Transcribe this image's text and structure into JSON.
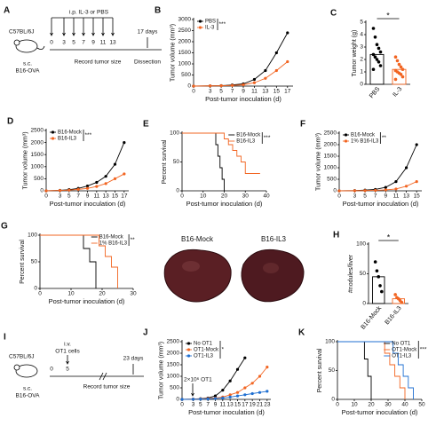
{
  "chart_data": [
    {
      "type": "line",
      "panel": "B",
      "xlabel": "Post-tumor inoculation (d)",
      "ylabel": "Tumor volume (mm³)",
      "x": [
        0,
        3,
        5,
        7,
        9,
        11,
        13,
        15,
        17
      ],
      "xlim": [
        0,
        18
      ],
      "xticks": [
        0,
        3,
        5,
        7,
        9,
        11,
        13,
        15,
        17
      ],
      "ylim": [
        0,
        3000
      ],
      "yticks": [
        0,
        500,
        1000,
        1500,
        2000,
        2500,
        3000
      ],
      "legend": "upper left",
      "significance": "***",
      "series": [
        {
          "name": "PBS",
          "color": "#000000",
          "values": [
            0,
            10,
            20,
            50,
            100,
            300,
            700,
            1500,
            2400
          ]
        },
        {
          "name": "IL-3",
          "color": "#f26522",
          "values": [
            0,
            10,
            15,
            30,
            60,
            150,
            350,
            700,
            1100
          ]
        }
      ]
    },
    {
      "type": "bar",
      "panel": "C",
      "ylabel": "Tumor weight (g)",
      "categories": [
        "PBS",
        "IL-3"
      ],
      "values": [
        2.4,
        1.2
      ],
      "colors": [
        "#000000",
        "#f26522"
      ],
      "ylim": [
        0,
        5
      ],
      "yticks": [
        0,
        1,
        2,
        3,
        4,
        5
      ],
      "significance": "*",
      "points": [
        [
          4.5,
          3.8,
          3.2,
          2.9,
          2.6,
          2.4,
          2.2,
          2.0,
          1.8,
          1.5,
          1.2
        ],
        [
          2.2,
          1.9,
          1.6,
          1.4,
          1.2,
          1.1,
          1.0,
          0.9,
          0.8,
          0.6,
          0.4
        ]
      ]
    },
    {
      "type": "line",
      "panel": "D",
      "xlabel": "Post-tumor inoculation (d)",
      "ylabel": "Tumor volume (mm³)",
      "x": [
        0,
        3,
        5,
        7,
        9,
        11,
        13,
        15,
        17
      ],
      "xlim": [
        0,
        18
      ],
      "xticks": [
        0,
        3,
        5,
        7,
        9,
        11,
        13,
        15,
        17
      ],
      "ylim": [
        0,
        2500
      ],
      "yticks": [
        0,
        500,
        1000,
        1500,
        2000,
        2500
      ],
      "legend": "upper left",
      "significance": "***",
      "series": [
        {
          "name": "B16-Mock",
          "color": "#000000",
          "values": [
            0,
            20,
            50,
            100,
            200,
            350,
            600,
            1100,
            2000
          ]
        },
        {
          "name": "B16-IL3",
          "color": "#f26522",
          "values": [
            0,
            15,
            30,
            60,
            100,
            180,
            300,
            500,
            700
          ]
        }
      ]
    },
    {
      "type": "step",
      "panel": "E",
      "xlabel": "Post-tumor inoculation (d)",
      "ylabel": "Percent survival",
      "xlim": [
        0,
        40
      ],
      "xticks": [
        0,
        10,
        20,
        30,
        40
      ],
      "ylim": [
        0,
        100
      ],
      "yticks": [
        0,
        50,
        100
      ],
      "legend": "upper right",
      "significance": "***",
      "series": [
        {
          "name": "B16-Mock",
          "color": "#000000",
          "x": [
            0,
            15,
            16,
            17,
            18,
            19,
            20
          ],
          "values": [
            100,
            100,
            80,
            60,
            40,
            20,
            0
          ]
        },
        {
          "name": "B16-IL3",
          "color": "#f26522",
          "x": [
            0,
            18,
            20,
            22,
            24,
            26,
            28,
            30,
            37
          ],
          "values": [
            100,
            100,
            90,
            80,
            70,
            60,
            50,
            30,
            30
          ]
        }
      ]
    },
    {
      "type": "line",
      "panel": "F",
      "xlabel": "Post-tumor inoculation (d)",
      "ylabel": "Tumor volume (mm³)",
      "x": [
        0,
        3,
        5,
        7,
        9,
        11,
        13,
        15
      ],
      "xlim": [
        0,
        16
      ],
      "xticks": [
        0,
        3,
        5,
        7,
        9,
        11,
        13,
        15
      ],
      "ylim": [
        0,
        2500
      ],
      "yticks": [
        0,
        500,
        1000,
        1500,
        2000,
        2500
      ],
      "legend": "upper left",
      "significance": "**",
      "series": [
        {
          "name": "B16-Mock",
          "color": "#000000",
          "values": [
            0,
            10,
            30,
            60,
            150,
            400,
            1000,
            2000
          ]
        },
        {
          "name": "1% B16-IL3",
          "color": "#f26522",
          "values": [
            0,
            5,
            10,
            20,
            40,
            80,
            200,
            400
          ]
        }
      ]
    },
    {
      "type": "step",
      "panel": "G",
      "xlabel": "Post-tumor inoculation (d)",
      "ylabel": "Percent survival",
      "xlim": [
        0,
        30
      ],
      "xticks": [
        0,
        10,
        20,
        30
      ],
      "ylim": [
        0,
        100
      ],
      "yticks": [
        0,
        50,
        100
      ],
      "legend": "upper right",
      "significance": "**",
      "series": [
        {
          "name": "B16-Mock",
          "color": "#000000",
          "x": [
            0,
            12,
            14,
            16,
            18
          ],
          "values": [
            100,
            100,
            75,
            50,
            0
          ]
        },
        {
          "name": "1% B16-IL3",
          "color": "#f26522",
          "x": [
            0,
            17,
            19,
            21,
            23,
            25
          ],
          "values": [
            100,
            100,
            80,
            60,
            40,
            0
          ]
        }
      ]
    },
    {
      "type": "bar",
      "panel": "H",
      "ylabel": "#nodules/liver",
      "categories": [
        "B16-Mock",
        "B16-IL3"
      ],
      "values": [
        45,
        8
      ],
      "colors": [
        "#000000",
        "#f26522"
      ],
      "ylim": [
        0,
        100
      ],
      "yticks": [
        0,
        50,
        100
      ],
      "significance": "*",
      "images": [
        "B16-Mock",
        "B16-IL3"
      ],
      "points": [
        [
          70,
          55,
          45,
          30,
          20
        ],
        [
          15,
          10,
          8,
          5,
          2
        ]
      ]
    },
    {
      "type": "line",
      "panel": "J",
      "xlabel": "Post-tumor inoculation (d)",
      "ylabel": "Tumor volume (mm³)",
      "dose_note": "2×10⁶ OT1",
      "x": [
        0,
        3,
        5,
        7,
        9,
        11,
        13,
        15,
        17,
        19,
        21,
        23
      ],
      "xlim": [
        0,
        24
      ],
      "xticks": [
        0,
        3,
        5,
        7,
        9,
        11,
        13,
        15,
        17,
        19,
        21,
        23
      ],
      "ylim": [
        0,
        2500
      ],
      "yticks": [
        0,
        500,
        1000,
        1500,
        2000,
        2500
      ],
      "legend": "upper left",
      "significance": "*",
      "series": [
        {
          "name": "No OT1",
          "color": "#000000",
          "values": [
            0,
            10,
            30,
            60,
            150,
            400,
            800,
            1300,
            1800,
            null,
            null,
            null
          ]
        },
        {
          "name": "OT1-Mock",
          "color": "#f26522",
          "values": [
            0,
            10,
            20,
            40,
            60,
            100,
            200,
            300,
            500,
            700,
            1000,
            1400
          ]
        },
        {
          "name": "OT1-IL3",
          "color": "#1f6fd1",
          "values": [
            0,
            5,
            10,
            20,
            40,
            60,
            100,
            150,
            200,
            250,
            300,
            350
          ]
        }
      ]
    },
    {
      "type": "step",
      "panel": "K",
      "xlabel": "Post-tumor inoculation (d)",
      "ylabel": "Percent survival",
      "xlim": [
        0,
        50
      ],
      "xticks": [
        0,
        10,
        20,
        30,
        40,
        50
      ],
      "ylim": [
        0,
        100
      ],
      "yticks": [
        0,
        50,
        100
      ],
      "legend": "upper right",
      "significance": "***",
      "series": [
        {
          "name": "No OT1",
          "color": "#000000",
          "x": [
            0,
            14,
            16,
            18,
            20
          ],
          "values": [
            100,
            100,
            70,
            40,
            0
          ]
        },
        {
          "name": "OT1-Mock",
          "color": "#f26522",
          "x": [
            0,
            25,
            28,
            31,
            34,
            37,
            40
          ],
          "values": [
            100,
            100,
            80,
            60,
            40,
            20,
            0
          ]
        },
        {
          "name": "OT1-IL3",
          "color": "#1f6fd1",
          "x": [
            0,
            30,
            33,
            36,
            39,
            42,
            45
          ],
          "values": [
            100,
            100,
            80,
            60,
            40,
            20,
            0
          ]
        }
      ]
    }
  ],
  "timelines": [
    {
      "panel": "A",
      "mouse": "C57BL/6J",
      "route": "s.c.",
      "cells": "B16-OVA",
      "treatment": "i.p. IL-3 or PBS",
      "days": [
        "0",
        "3",
        "5",
        "7",
        "9",
        "11",
        "13"
      ],
      "end_day": "17 days",
      "record": "Record tumor size",
      "end": "Dissection"
    },
    {
      "panel": "I",
      "mouse": "C57BL/6J",
      "route": "s.c.",
      "cells": "B16-OVA",
      "treatment": "i.v.",
      "treatment2": "OT1 cells",
      "days": [
        "0",
        "5"
      ],
      "end_day": "23 days",
      "record": "Record tumor size"
    }
  ]
}
